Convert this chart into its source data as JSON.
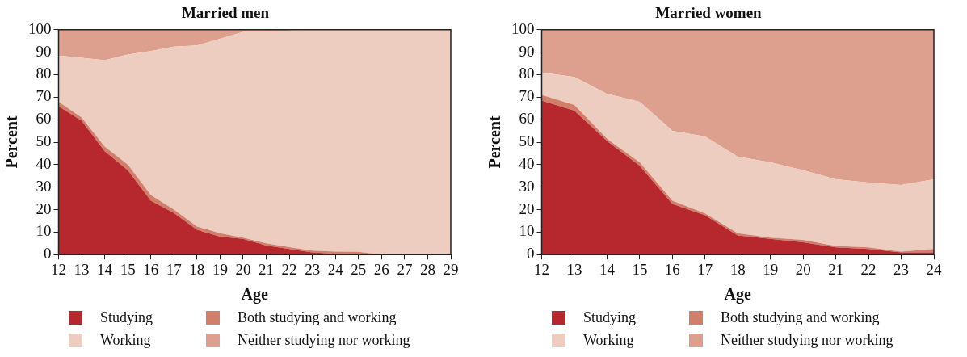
{
  "chart_data": [
    {
      "type": "area",
      "stacked": true,
      "title": "Married men",
      "xlabel": "Age",
      "ylabel": "Percent",
      "legend": "bottom",
      "grid": false,
      "x": [
        12,
        13,
        14,
        15,
        16,
        17,
        18,
        19,
        20,
        21,
        22,
        23,
        24,
        25,
        26,
        27,
        28,
        29
      ],
      "xlim": [
        12,
        29
      ],
      "xticks": [
        12,
        13,
        14,
        15,
        16,
        17,
        18,
        19,
        20,
        21,
        22,
        23,
        24,
        25,
        26,
        27,
        28,
        29
      ],
      "ylim": [
        0,
        100
      ],
      "yticks": [
        0,
        10,
        20,
        30,
        40,
        50,
        60,
        70,
        80,
        90,
        100
      ],
      "series": [
        {
          "name": "Studying",
          "color": "#b7282e",
          "values": [
            66,
            59.5,
            46,
            37.5,
            24,
            18.5,
            11,
            8,
            7,
            4,
            2.5,
            1,
            0.3,
            0.2,
            0,
            0,
            0,
            0
          ]
        },
        {
          "name": "Both studying and working",
          "color": "#d17f6b",
          "values": [
            2,
            1.5,
            2,
            2.5,
            2.5,
            1.5,
            1.5,
            1.5,
            0.5,
            1,
            0.8,
            0.8,
            1,
            1,
            0,
            0,
            0,
            0
          ]
        },
        {
          "name": "Working",
          "color": "#edcdc0",
          "values": [
            20.5,
            26.5,
            38.5,
            49,
            64,
            72.5,
            80.5,
            86.5,
            91.5,
            94,
            96.4,
            98.2,
            98.7,
            98.8,
            100,
            100,
            100,
            100
          ]
        },
        {
          "name": "Neither studying nor working",
          "color": "#dda08e",
          "values": [
            11.5,
            12.5,
            13.5,
            11,
            9.5,
            7.5,
            7,
            4,
            1,
            1,
            0.3,
            0,
            0,
            0,
            0,
            0,
            0,
            0
          ]
        }
      ]
    },
    {
      "type": "area",
      "stacked": true,
      "title": "Married women",
      "xlabel": "Age",
      "ylabel": "Percent",
      "legend": "bottom",
      "grid": false,
      "x": [
        12,
        13,
        14,
        15,
        16,
        17,
        18,
        19,
        20,
        21,
        22,
        23,
        24
      ],
      "xlim": [
        12,
        24
      ],
      "xticks": [
        12,
        13,
        14,
        15,
        16,
        17,
        18,
        19,
        20,
        21,
        22,
        23,
        24
      ],
      "ylim": [
        0,
        100
      ],
      "yticks": [
        0,
        10,
        20,
        30,
        40,
        50,
        60,
        70,
        80,
        90,
        100
      ],
      "series": [
        {
          "name": "Studying",
          "color": "#b7282e",
          "values": [
            68.5,
            64,
            50.5,
            39.5,
            22.5,
            17.5,
            8.5,
            7,
            5.5,
            3.2,
            2.5,
            1,
            1
          ]
        },
        {
          "name": "Both studying and working",
          "color": "#d17f6b",
          "values": [
            2.5,
            2.5,
            1,
            1.5,
            1.5,
            0.8,
            1,
            0.5,
            1,
            0.6,
            0.7,
            0.3,
            1.5
          ]
        },
        {
          "name": "Working",
          "color": "#edcdc0",
          "values": [
            10,
            12.5,
            20,
            27,
            31,
            34.2,
            34,
            33.5,
            31,
            29.7,
            28.8,
            29.7,
            31
          ]
        },
        {
          "name": "Neither studying nor working",
          "color": "#dda08e",
          "values": [
            19,
            21,
            28.5,
            32,
            45,
            47.5,
            56.5,
            59,
            62.5,
            66.5,
            68,
            69,
            66.5
          ]
        }
      ]
    }
  ]
}
